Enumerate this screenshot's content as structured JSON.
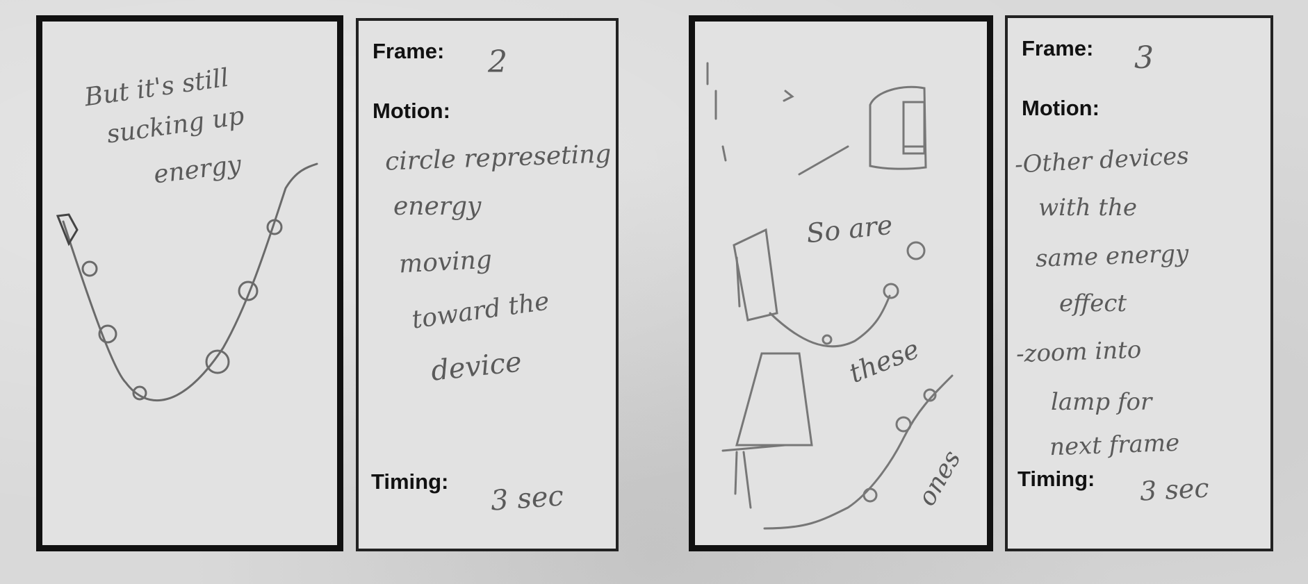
{
  "frames": [
    {
      "frame_label": "Frame:",
      "frame_value": "2",
      "motion_label": "Motion:",
      "motion_lines": [
        "circle represeting",
        "energy",
        "moving",
        "toward the",
        "device"
      ],
      "timing_label": "Timing:",
      "timing_value": "3 sec",
      "sketch_text": [
        "But it's still",
        "sucking up",
        "energy"
      ]
    },
    {
      "frame_label": "Frame:",
      "frame_value": "3",
      "motion_label": "Motion:",
      "motion_lines": [
        "-Other devices",
        "with the",
        "same energy",
        "effect",
        "-zoom into",
        "lamp for",
        "next frame"
      ],
      "timing_label": "Timing:",
      "timing_value": "3 sec",
      "sketch_text": [
        "So are",
        "these",
        "ones"
      ]
    }
  ]
}
